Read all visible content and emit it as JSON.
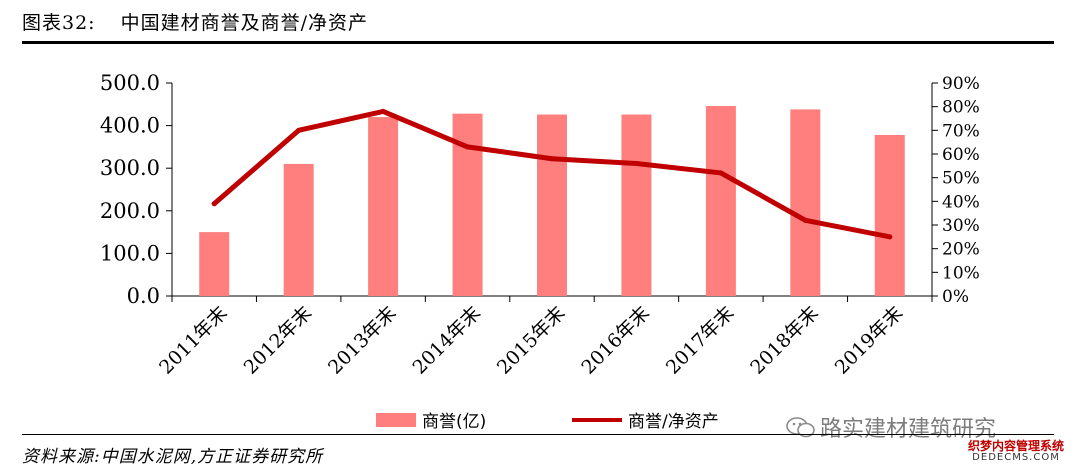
{
  "header": {
    "figure_num": "图表32:",
    "title": "中国建材商誉及商誉/净资产"
  },
  "source": "资料来源:中国水泥网,方正证券研究所",
  "watermark": {
    "text": "路实建材建筑研究",
    "icon": "wechat-icon"
  },
  "corner_logo": {
    "cn": "织梦内容管理系统",
    "en": "DEDECMS.COM"
  },
  "colors": {
    "bar": "#FF7F7F",
    "line": "#C00000",
    "axis": "#000000"
  },
  "chart_data": {
    "type": "bar",
    "title": "",
    "categories": [
      "2011年末",
      "2012年末",
      "2013年末",
      "2014年末",
      "2015年末",
      "2016年末",
      "2017年末",
      "2018年末",
      "2019年末"
    ],
    "series": [
      {
        "name": "商誉(亿)",
        "type": "bar",
        "axis": "left",
        "values": [
          150,
          310,
          420,
          428,
          426,
          426,
          446,
          438,
          378
        ]
      },
      {
        "name": "商誉/净资产",
        "type": "line",
        "axis": "right",
        "values": [
          0.39,
          0.7,
          0.78,
          0.63,
          0.58,
          0.56,
          0.52,
          0.32,
          0.25
        ]
      }
    ],
    "y_left": {
      "lim": [
        0,
        500
      ],
      "ticks": [
        "0.0",
        "100.0",
        "200.0",
        "300.0",
        "400.0",
        "500.0"
      ]
    },
    "y_right": {
      "lim": [
        0,
        0.9
      ],
      "ticks": [
        "0%",
        "10%",
        "20%",
        "30%",
        "40%",
        "50%",
        "60%",
        "70%",
        "80%",
        "90%"
      ]
    },
    "legend_position": "bottom",
    "grid": false
  }
}
